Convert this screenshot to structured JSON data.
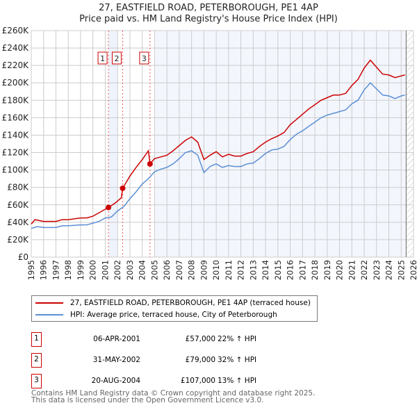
{
  "chart_data": {
    "type": "line",
    "title": "27, EASTFIELD ROAD, PETERBOROUGH, PE1 4AP",
    "subtitle": "Price paid vs. HM Land Registry's House Price Index (HPI)",
    "xlim": [
      1995,
      2026
    ],
    "ylim": [
      0,
      260000
    ],
    "grid": true,
    "x_ticks": [
      "1995",
      "1996",
      "1997",
      "1998",
      "1999",
      "2000",
      "2001",
      "2002",
      "2003",
      "2004",
      "2005",
      "2006",
      "2007",
      "2008",
      "2009",
      "2010",
      "2011",
      "2012",
      "2013",
      "2014",
      "2015",
      "2016",
      "2017",
      "2018",
      "2019",
      "2020",
      "2021",
      "2022",
      "2023",
      "2024",
      "2025",
      "2026"
    ],
    "y_ticks": [
      {
        "v": 0,
        "label": "£0"
      },
      {
        "v": 20000,
        "label": "£20K"
      },
      {
        "v": 40000,
        "label": "£40K"
      },
      {
        "v": 60000,
        "label": "£60K"
      },
      {
        "v": 80000,
        "label": "£80K"
      },
      {
        "v": 100000,
        "label": "£100K"
      },
      {
        "v": 120000,
        "label": "£120K"
      },
      {
        "v": 140000,
        "label": "£140K"
      },
      {
        "v": 160000,
        "label": "£160K"
      },
      {
        "v": 180000,
        "label": "£180K"
      },
      {
        "v": 200000,
        "label": "£200K"
      },
      {
        "v": 220000,
        "label": "£220K"
      },
      {
        "v": 240000,
        "label": "£240K"
      },
      {
        "v": 260000,
        "label": "£260K"
      }
    ],
    "forecast_from": 2025.4,
    "series": [
      {
        "name": "27, EASTFIELD ROAD, PETERBOROUGH, PE1 4AP (terraced house)",
        "color": "#cc0000",
        "x": [
          1995,
          1995.3,
          1996,
          1997,
          1997.5,
          1998,
          1999,
          1999.5,
          2000,
          2000.5,
          2001,
          2001.26,
          2001.8,
          2002.3,
          2002.42,
          2003,
          2003.5,
          2004,
          2004.5,
          2004.63,
          2005,
          2005.5,
          2006,
          2006.5,
          2007,
          2007.5,
          2008,
          2008.5,
          2009,
          2009.5,
          2010,
          2010.5,
          2011,
          2011.5,
          2012,
          2012.5,
          2013,
          2013.5,
          2014,
          2014.5,
          2015,
          2015.5,
          2016,
          2016.5,
          2017,
          2017.5,
          2018,
          2018.5,
          2019,
          2019.5,
          2020,
          2020.5,
          2021,
          2021.5,
          2022,
          2022.5,
          2023,
          2023.5,
          2024,
          2024.5,
          2025,
          2025.3
        ],
        "y": [
          38,
          43,
          41,
          41,
          43,
          43,
          45,
          45,
          47,
          51,
          55,
          57,
          62,
          68,
          79,
          93,
          103,
          112,
          122,
          107,
          113,
          115,
          117,
          122,
          128,
          134,
          138,
          132,
          112,
          117,
          121,
          115,
          118,
          116,
          116,
          119,
          121,
          127,
          132,
          136,
          139,
          143,
          152,
          158,
          164,
          170,
          175,
          180,
          183,
          186,
          186,
          188,
          197,
          204,
          217,
          226,
          218,
          210,
          209,
          206,
          208,
          209
        ]
      },
      {
        "name": "HPI: Average price, terraced house, City of Peterborough",
        "color": "#5b8fd4",
        "x": [
          1995,
          1995.5,
          1996,
          1997,
          1997.5,
          1998,
          1999,
          1999.5,
          2000,
          2000.5,
          2001,
          2001.5,
          2002,
          2002.5,
          2003,
          2003.5,
          2004,
          2004.5,
          2005,
          2005.5,
          2006,
          2006.5,
          2007,
          2007.5,
          2008,
          2008.5,
          2009,
          2009.5,
          2010,
          2010.5,
          2011,
          2011.5,
          2012,
          2012.5,
          2013,
          2013.5,
          2014,
          2014.5,
          2015,
          2015.5,
          2016,
          2016.5,
          2017,
          2017.5,
          2018,
          2018.5,
          2019,
          2019.5,
          2020,
          2020.5,
          2021,
          2021.5,
          2022,
          2022.5,
          2023,
          2023.5,
          2024,
          2024.5,
          2025,
          2025.3
        ],
        "y": [
          33,
          35,
          34,
          34,
          36,
          36,
          37,
          37,
          39,
          41,
          45,
          46,
          53,
          58,
          67,
          75,
          84,
          90,
          98,
          101,
          103,
          107,
          113,
          120,
          122,
          117,
          97,
          104,
          107,
          103,
          105,
          104,
          104,
          107,
          108,
          113,
          119,
          123,
          124,
          127,
          135,
          141,
          145,
          150,
          155,
          160,
          163,
          165,
          167,
          169,
          176,
          180,
          192,
          200,
          193,
          186,
          185,
          182,
          185,
          186
        ]
      }
    ],
    "y_unit_multiplier": 1000,
    "sales": [
      {
        "id": "1",
        "x": 2001.26,
        "price": 57,
        "date": "06-APR-2001",
        "price_label": "£57,000",
        "hpi": "22% ↑ HPI"
      },
      {
        "id": "2",
        "x": 2002.41,
        "price": 79,
        "date": "31-MAY-2002",
        "price_label": "£79,000",
        "hpi": "32% ↑ HPI"
      },
      {
        "id": "3",
        "x": 2004.63,
        "price": 107,
        "date": "20-AUG-2004",
        "price_label": "£107,000",
        "hpi": "13% ↑ HPI"
      }
    ]
  },
  "legend": {
    "property": "27, EASTFIELD ROAD, PETERBOROUGH, PE1 4AP (terraced house)",
    "hpi": "HPI: Average price, terraced house, City of Peterborough"
  },
  "footer": {
    "line1": "Contains HM Land Registry data © Crown copyright and database right 2025.",
    "line2": "This data is licensed under the Open Government Licence v3.0."
  }
}
